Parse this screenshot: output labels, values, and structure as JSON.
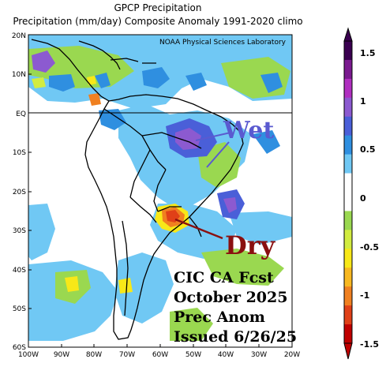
{
  "title_line1": "GPCP Precipitation",
  "title_line2": "Precipitation (mm/day) Composite Anomaly 1991-2020 climo",
  "credit": "NOAA Physical Sciences Laboratory",
  "lat_labels": [
    "20N",
    "10N",
    "EQ",
    "10S",
    "20S",
    "30S",
    "40S",
    "50S",
    "60S"
  ],
  "lon_labels": [
    "100W",
    "90W",
    "80W",
    "70W",
    "60W",
    "50W",
    "40W",
    "30W",
    "20W"
  ],
  "annotations": {
    "wet": "Wet",
    "dry": "Dry",
    "forecast_line1": "CIC CA Fcst",
    "forecast_line2": "October 2025",
    "forecast_line3": "Prec Anom",
    "forecast_line4": "Issued 6/26/25"
  },
  "colorbar": {
    "labels": [
      "1.5",
      "1",
      "0.5",
      "0",
      "-0.5",
      "-1",
      "-1.5"
    ],
    "colors": [
      "#3a0050",
      "#7a1a8f",
      "#b02fc0",
      "#8c5ad0",
      "#4a5fd8",
      "#2f8fe0",
      "#70c8f4",
      "#ffffff",
      "#ffffff",
      "#9ad850",
      "#d2ec40",
      "#f8e818",
      "#f8b820",
      "#f08020",
      "#e04018",
      "#c00000"
    ]
  },
  "colors": {
    "wet_text": "#5a5ad0",
    "dry_text": "#8a1010",
    "land_outline": "#000000",
    "equator_line": "#000000"
  }
}
